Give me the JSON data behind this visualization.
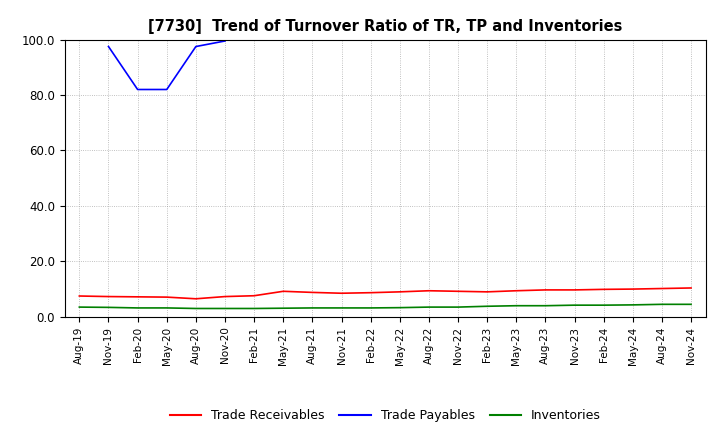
{
  "title": "[7730]  Trend of Turnover Ratio of TR, TP and Inventories",
  "ylim": [
    0.0,
    100.0
  ],
  "yticks": [
    0.0,
    20.0,
    40.0,
    60.0,
    80.0,
    100.0
  ],
  "background_color": "#ffffff",
  "grid_color": "#aaaaaa",
  "trade_receivables": {
    "label": "Trade Receivables",
    "color": "#ff0000",
    "x_indices": [
      0,
      1,
      2,
      3,
      4,
      5,
      6,
      7,
      8,
      9,
      10,
      11,
      12,
      13,
      14,
      15,
      16,
      17,
      18,
      19,
      20,
      21
    ],
    "values": [
      7.5,
      7.3,
      7.2,
      7.1,
      6.5,
      7.3,
      7.6,
      9.2,
      8.8,
      8.5,
      8.7,
      9.0,
      9.4,
      9.2,
      9.0,
      9.4,
      9.7,
      9.7,
      9.9,
      10.0,
      10.2,
      10.4
    ]
  },
  "trade_payables": {
    "label": "Trade Payables",
    "color": "#0000ff",
    "segments": [
      {
        "x_indices": [
          1,
          2,
          3,
          4,
          5
        ],
        "values": [
          97.5,
          82.0,
          82.0,
          97.5,
          99.5
        ]
      }
    ]
  },
  "inventories": {
    "label": "Inventories",
    "color": "#008000",
    "x_indices": [
      0,
      1,
      2,
      3,
      4,
      5,
      6,
      7,
      8,
      9,
      10,
      11,
      12,
      13,
      14,
      15,
      16,
      17,
      18,
      19,
      20,
      21
    ],
    "values": [
      3.5,
      3.4,
      3.2,
      3.2,
      3.0,
      3.0,
      3.0,
      3.1,
      3.2,
      3.2,
      3.2,
      3.3,
      3.5,
      3.5,
      3.8,
      4.0,
      4.0,
      4.2,
      4.2,
      4.3,
      4.5,
      4.5
    ]
  },
  "xtick_labels": [
    "Aug-19",
    "Nov-19",
    "Feb-20",
    "May-20",
    "Aug-20",
    "Nov-20",
    "Feb-21",
    "May-21",
    "Aug-21",
    "Nov-21",
    "Feb-22",
    "May-22",
    "Aug-22",
    "Nov-22",
    "Feb-23",
    "May-23",
    "Aug-23",
    "Nov-23",
    "Feb-24",
    "May-24",
    "Aug-24",
    "Nov-24"
  ],
  "legend_labels": [
    "Trade Receivables",
    "Trade Payables",
    "Inventories"
  ],
  "legend_colors": [
    "#ff0000",
    "#0000ff",
    "#008000"
  ]
}
